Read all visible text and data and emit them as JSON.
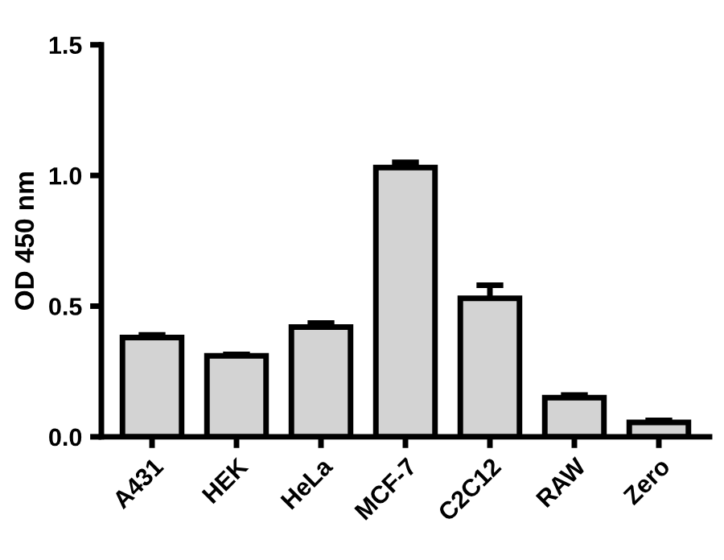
{
  "chart_data": {
    "type": "bar",
    "ylabel": "OD 450 nm",
    "categories": [
      "A431",
      "HEK",
      "HeLa",
      "MCF-7",
      "C2C12",
      "RAW",
      "Zero"
    ],
    "values": [
      0.38,
      0.31,
      0.42,
      1.03,
      0.53,
      0.15,
      0.055
    ],
    "errors": [
      0.01,
      0.005,
      0.015,
      0.02,
      0.05,
      0.01,
      0.008
    ],
    "color": "#d3d3d3",
    "ylim": [
      0,
      1.5
    ],
    "yticks": [
      {
        "value": 0,
        "label": "0.0"
      },
      0.5,
      {
        "value": 1,
        "label": "1.0"
      },
      1.5
    ],
    "grid": false,
    "legend": false
  }
}
